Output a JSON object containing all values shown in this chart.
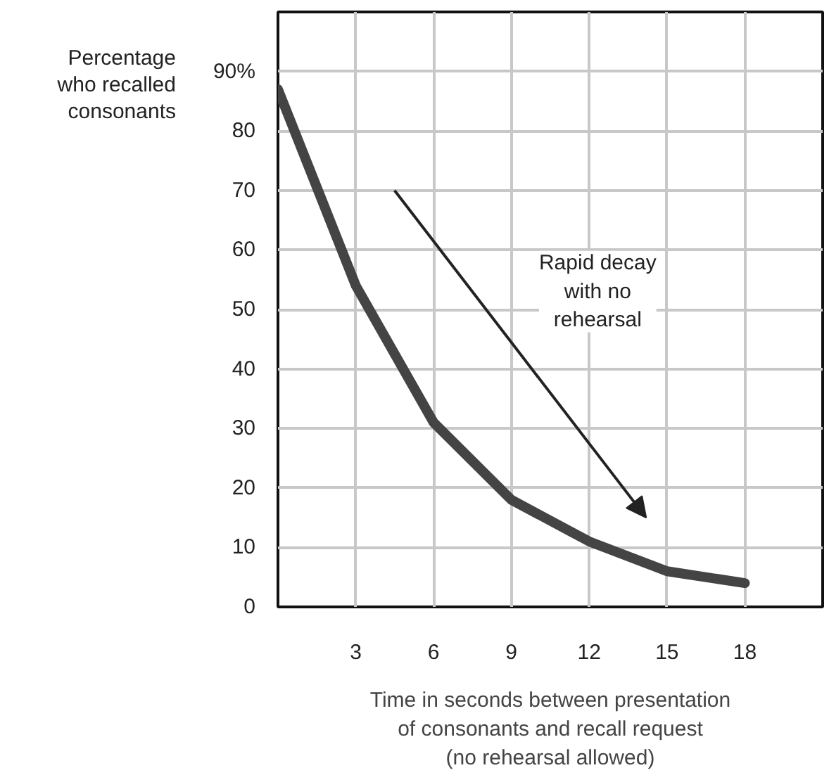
{
  "chart_data": {
    "type": "line",
    "xlabel": "Time in seconds between presentation\nof consonants and recall request\n(no rehearsal allowed)",
    "ylabel": "Percentage\nwho recalled\nconsonants",
    "x": [
      0,
      3,
      6,
      9,
      12,
      15,
      18
    ],
    "series": [
      {
        "color": "#444444",
        "values": [
          87,
          54,
          31,
          18,
          11,
          6,
          4
        ]
      }
    ],
    "xlim": [
      0,
      21
    ],
    "ylim": [
      0,
      100
    ],
    "xticks": [
      3,
      6,
      9,
      12,
      15,
      18
    ],
    "yticks": [
      0,
      10,
      20,
      30,
      40,
      50,
      60,
      70,
      {
        "value": 90,
        "label": "90%"
      },
      80
    ],
    "grid": true,
    "marker": "none",
    "line_style": "solid",
    "annotations": [
      "Rapid decay\nwith no\nrehearsal"
    ]
  }
}
